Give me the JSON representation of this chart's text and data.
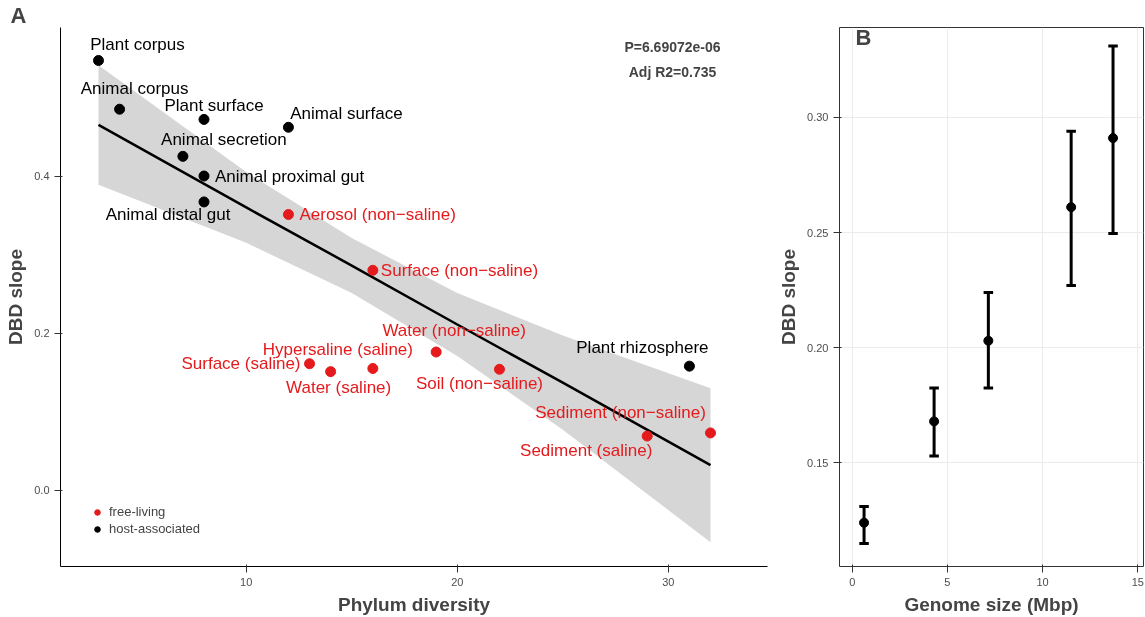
{
  "chart_data": [
    {
      "type": "scatter",
      "title": "A",
      "xlabel": "Phylum diversity",
      "ylabel": "DBD slope",
      "xlim": [
        1.2,
        34.7
      ],
      "ylim": [
        -0.097,
        0.589
      ],
      "xticks": [
        10,
        20,
        30
      ],
      "yticks": [
        {
          "value": 0,
          "label": "0.0"
        },
        {
          "value": 0.2,
          "label": "0.2"
        },
        {
          "value": 0.4,
          "label": "0.4"
        }
      ],
      "grid": false,
      "legend": "bottom left",
      "marker": "circle",
      "series": [
        {
          "name": "free-living",
          "color": "#e41a1c",
          "x": [
            12,
            16,
            19,
            16,
            13,
            14,
            22,
            32,
            29
          ],
          "values": [
            0.351,
            0.28,
            0.176,
            0.155,
            0.161,
            0.151,
            0.154,
            0.073,
            0.069
          ]
        },
        {
          "name": "host-associated",
          "color": "#000000",
          "x": [
            3,
            4,
            8,
            12,
            7,
            8,
            8,
            31
          ],
          "values": [
            0.547,
            0.485,
            0.472,
            0.462,
            0.425,
            0.4,
            0.367,
            0.158
          ]
        },
        {
          "type": "line",
          "marker": "none",
          "color": "#000000",
          "x": [
            3,
            10,
            15,
            20,
            25,
            32
          ],
          "values": [
            0.465,
            0.36,
            0.286,
            0.211,
            0.137,
            0.032
          ],
          "lower": [
            0.389,
            0.315,
            0.251,
            0.171,
            0.077,
            -0.066
          ],
          "upper": [
            0.541,
            0.405,
            0.321,
            0.251,
            0.197,
            0.13
          ]
        }
      ],
      "annotations": [
        {
          "text": "Plant corpus",
          "x": 3,
          "y": 0.547
        },
        {
          "text": "Animal corpus",
          "x": 4,
          "y": 0.485
        },
        {
          "text": "Plant surface",
          "x": 8,
          "y": 0.472
        },
        {
          "text": "Animal surface",
          "x": 12,
          "y": 0.462
        },
        {
          "text": "Animal secretion",
          "x": 7,
          "y": 0.425
        },
        {
          "text": "Animal proximal gut",
          "x": 8,
          "y": 0.4
        },
        {
          "text": "Animal distal gut",
          "x": 8,
          "y": 0.367
        },
        {
          "text": "Aerosol (non−saline)",
          "x": 12,
          "y": 0.351
        },
        {
          "text": "Surface (non−saline)",
          "x": 16,
          "y": 0.28
        },
        {
          "text": "Water (non−saline)",
          "x": 19,
          "y": 0.176
        },
        {
          "text": "Hypersaline (saline)",
          "x": 16,
          "y": 0.155
        },
        {
          "text": "Surface (saline)",
          "x": 13,
          "y": 0.161
        },
        {
          "text": "Water (saline)",
          "x": 14,
          "y": 0.151
        },
        {
          "text": "Soil (non−saline)",
          "x": 22,
          "y": 0.154
        },
        {
          "text": "Plant rhizosphere",
          "x": 31,
          "y": 0.158
        },
        {
          "text": "Sediment (non−saline)",
          "x": 32,
          "y": 0.073
        },
        {
          "text": "Sediment (saline)",
          "x": 29,
          "y": 0.069
        },
        "P=6.69072e-06",
        "Adj R2=0.735"
      ]
    },
    {
      "type": "scatter",
      "title": "B",
      "xlabel": "Genome size (Mbp)",
      "ylabel": "DBD slope",
      "xlim": [
        -0.67,
        15.3
      ],
      "ylim": [
        0.105,
        0.339
      ],
      "xticks": [
        0,
        5,
        10,
        15
      ],
      "yticks": [
        0.15,
        {
          "value": 0.2,
          "label": "0.20"
        },
        0.25,
        {
          "value": 0.3,
          "label": "0.30"
        }
      ],
      "grid": true,
      "marker": "circle",
      "series": [
        {
          "color": "#000000",
          "x": [
            0.62,
            4.3,
            7.15,
            11.5,
            13.7
          ],
          "values": [
            0.124,
            0.168,
            0.203,
            0.261,
            0.291
          ],
          "errors": [
            [
              0.115,
              0.131
            ],
            [
              0.153,
              0.1825
            ],
            [
              0.1825,
              0.224
            ],
            [
              0.227,
              0.294
            ],
            [
              0.2496,
              0.331
            ]
          ]
        }
      ]
    }
  ]
}
